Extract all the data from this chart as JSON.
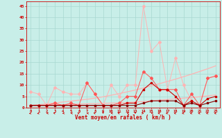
{
  "x": [
    0,
    1,
    2,
    3,
    4,
    5,
    6,
    7,
    8,
    9,
    10,
    11,
    12,
    13,
    14,
    15,
    16,
    17,
    18,
    19,
    20,
    21,
    22,
    23
  ],
  "line1_y": [
    7,
    6,
    1,
    9,
    7,
    6,
    6,
    11,
    6,
    1,
    10,
    5,
    10,
    10,
    45,
    25,
    29,
    8,
    22,
    10,
    3,
    1,
    13,
    14
  ],
  "line2_y": [
    1,
    1,
    1,
    2,
    1,
    2,
    1,
    11,
    6,
    1,
    1,
    2,
    5,
    5,
    16,
    13,
    8,
    8,
    8,
    1,
    6,
    1,
    13,
    14
  ],
  "line3_y": [
    1,
    1,
    1,
    1,
    1,
    1,
    1,
    1,
    1,
    1,
    1,
    1,
    2,
    2,
    8,
    11,
    8,
    8,
    5,
    1,
    3,
    1,
    4,
    5
  ],
  "line4_y": [
    1,
    1,
    1,
    1,
    1,
    1,
    1,
    1,
    1,
    1,
    1,
    1,
    1,
    1,
    2,
    3,
    3,
    3,
    3,
    1,
    2,
    1,
    2,
    3
  ],
  "trend1_y": [
    1,
    1.3,
    1.7,
    2.1,
    2.5,
    2.9,
    3.3,
    3.7,
    4.2,
    4.8,
    5.5,
    6.2,
    7.0,
    7.8,
    8.7,
    9.6,
    10.6,
    11.6,
    12.6,
    13.7,
    14.8,
    16.0,
    17.2,
    18.5
  ],
  "trend2_y": [
    1,
    1.1,
    1.2,
    1.3,
    1.4,
    1.5,
    1.6,
    1.7,
    1.8,
    1.9,
    2.0,
    2.1,
    2.3,
    2.5,
    2.7,
    3.0,
    3.3,
    3.6,
    3.9,
    4.2,
    4.5,
    4.8,
    5.2,
    5.6
  ],
  "color_light": "#FFB3B3",
  "color_medium": "#FF5555",
  "color_dark": "#CC0000",
  "color_darkest": "#880000",
  "bg_color": "#C8EEE8",
  "grid_color": "#A8D8D0",
  "axis_color": "#CC0000",
  "xlabel": "Vent moyen/en rafales ( km/h )",
  "ylim": [
    0,
    47
  ],
  "xlim": [
    -0.5,
    23.5
  ],
  "yticks": [
    0,
    5,
    10,
    15,
    20,
    25,
    30,
    35,
    40,
    45
  ]
}
